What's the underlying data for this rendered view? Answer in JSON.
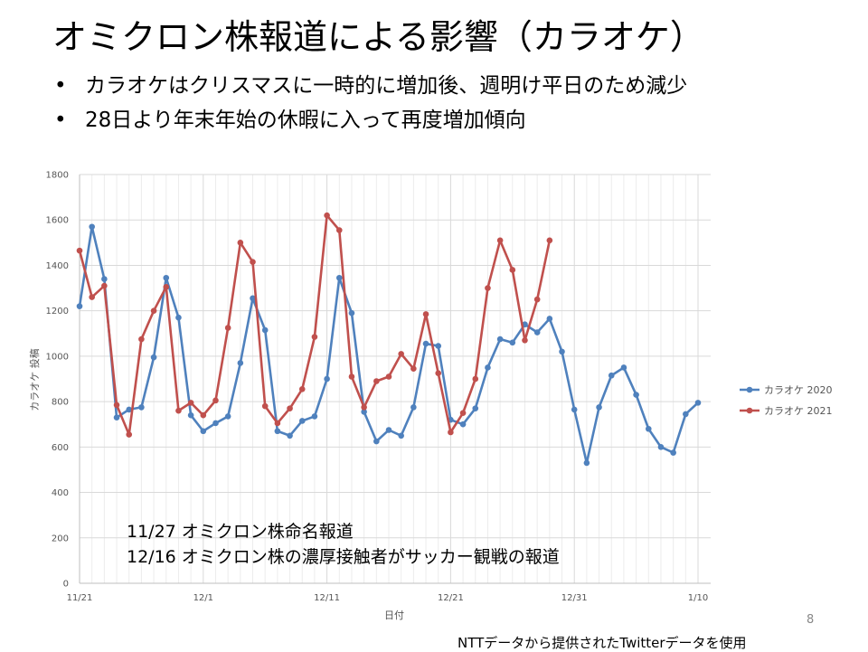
{
  "slide": {
    "title": "オミクロン株報道による影響（カラオケ）",
    "bullets": [
      "カラオケはクリスマスに一時的に増加後、週明け平日のため減少",
      "28日より年末年始の休暇に入って再度増加傾向"
    ],
    "annotations": [
      "11/27 オミクロン株命名報道",
      "12/16 オミクロン株の濃厚接触者がサッカー観戦の報道"
    ],
    "page_number": "8",
    "source_note": "NTTデータから提供されたTwitterデータを使用"
  },
  "chart_data": {
    "type": "line",
    "title": "",
    "xlabel": "日付",
    "ylabel": "カラオケ 投稿",
    "ylim": [
      0,
      1800
    ],
    "yticks": [
      0,
      200,
      400,
      600,
      800,
      1000,
      1200,
      1400,
      1600,
      1800
    ],
    "xlim": [
      "11/21",
      "1/10"
    ],
    "xticks": [
      "11/21",
      "12/1",
      "12/11",
      "12/21",
      "12/31",
      "1/10"
    ],
    "grid": true,
    "legend_position": "right",
    "colors": {
      "カラオケ 2020": "#4f81bd",
      "カラオケ 2021": "#c0504d"
    },
    "series": [
      {
        "name": "カラオケ 2020",
        "start": "11/21",
        "values": [
          1220,
          1570,
          1340,
          730,
          765,
          775,
          995,
          1345,
          1170,
          740,
          670,
          705,
          735,
          970,
          1255,
          1115,
          670,
          650,
          715,
          735,
          900,
          1345,
          1190,
          755,
          625,
          675,
          650,
          775,
          1055,
          1045,
          720,
          700,
          770,
          950,
          1075,
          1060,
          1140,
          1105,
          1165,
          1020,
          765,
          530,
          775,
          915,
          950,
          830,
          680,
          600,
          575,
          745,
          795
        ]
      },
      {
        "name": "カラオケ 2021",
        "start": "11/21",
        "values": [
          1465,
          1260,
          1310,
          785,
          655,
          1075,
          1200,
          1305,
          760,
          795,
          740,
          805,
          1125,
          1500,
          1415,
          780,
          705,
          770,
          855,
          1085,
          1620,
          1555,
          910,
          775,
          890,
          910,
          1010,
          945,
          1185,
          925,
          665,
          750,
          900,
          1300,
          1510,
          1380,
          1070,
          1250,
          1510
        ]
      }
    ]
  }
}
